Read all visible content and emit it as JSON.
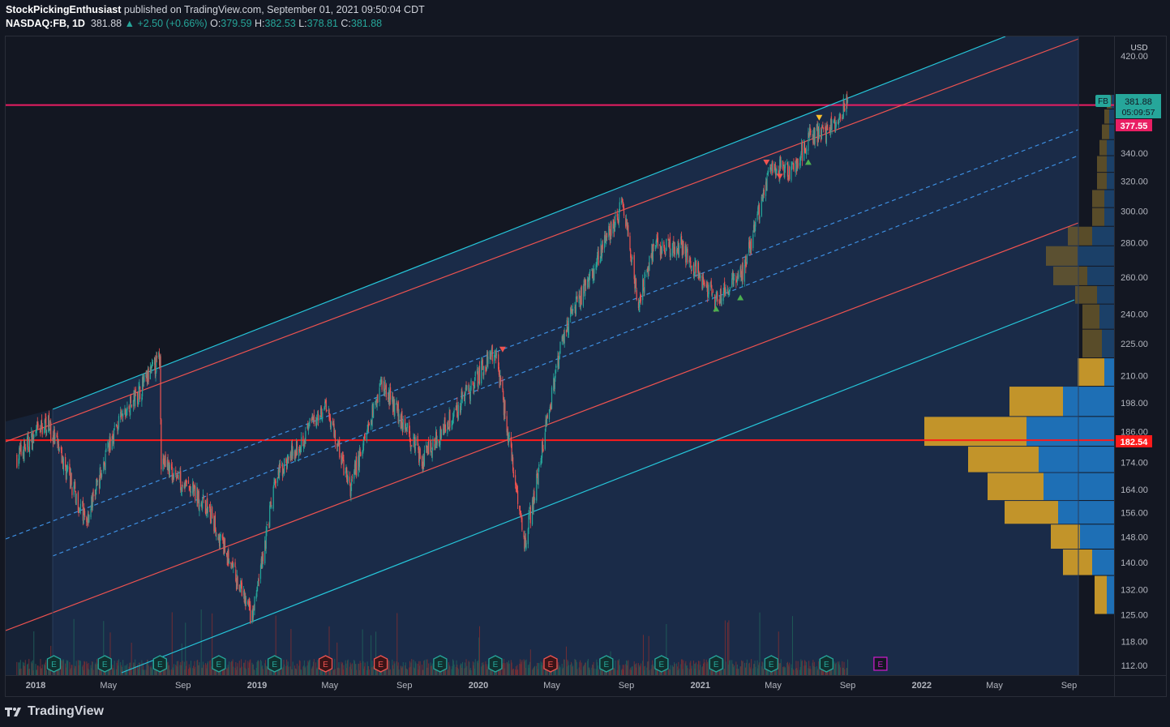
{
  "header": {
    "author": "StockPickingEnthusiast",
    "published": "published on TradingView.com, September 01, 2021 09:50:04 CDT",
    "symbol": "NASDAQ:FB, 1D",
    "last": "381.88",
    "change": "▲ +2.50 (+0.66%)",
    "o_label": "O:",
    "o": "379.59",
    "h_label": "H:",
    "h": "382.53",
    "l_label": "L:",
    "l": "378.81",
    "c_label": "C:",
    "c": "381.88"
  },
  "axis": {
    "currency": "USD",
    "y_ticks": [
      "420.00",
      "340.00",
      "320.00",
      "300.00",
      "280.00",
      "260.00",
      "240.00",
      "225.00",
      "210.00",
      "198.00",
      "186.00",
      "174.00",
      "164.00",
      "156.00",
      "148.00",
      "140.00",
      "132.00",
      "125.00",
      "118.00",
      "112.00"
    ],
    "x_ticks": [
      "2018",
      "May",
      "Sep",
      "2019",
      "May",
      "Sep",
      "2020",
      "May",
      "Sep",
      "2021",
      "May",
      "Sep",
      "2022",
      "May",
      "Sep"
    ]
  },
  "tags": {
    "symbol_tag": "FB",
    "last_price": "381.88",
    "countdown": "05:09:57",
    "resistance": "377.55",
    "support": "182.54"
  },
  "earnings_label": "E",
  "footer": {
    "brand": "TradingView"
  },
  "colors": {
    "up": "#26a69a",
    "down": "#ef5350",
    "cyan": "#26c6da",
    "red_line": "#ef5350",
    "channel_fill": "#1c2f4f",
    "vp_up": "#1e6fb5",
    "vp_down": "#c2942a",
    "resistance": "#e91e63"
  },
  "chart_data": {
    "type": "candlestick",
    "title": "NASDAQ:FB, 1D",
    "ylim": [
      112,
      420
    ],
    "xlim": [
      "2017-12-01",
      "2022-10-15"
    ],
    "y_scale": "log",
    "ohlc_last": {
      "open": 379.59,
      "high": 382.53,
      "low": 378.81,
      "close": 381.88
    },
    "horizontal_lines": [
      {
        "name": "resistance",
        "value": 377.55
      },
      {
        "name": "support",
        "value": 182.54
      }
    ],
    "price_path_keypoints": [
      [
        "2017-12-01",
        176
      ],
      [
        "2018-01-20",
        190
      ],
      [
        "2018-03-25",
        153
      ],
      [
        "2018-05-10",
        186
      ],
      [
        "2018-07-25",
        218
      ],
      [
        "2018-07-27",
        175
      ],
      [
        "2018-10-10",
        158
      ],
      [
        "2018-12-24",
        124
      ],
      [
        "2019-02-01",
        168
      ],
      [
        "2019-04-25",
        198
      ],
      [
        "2019-06-03",
        164
      ],
      [
        "2019-07-25",
        207
      ],
      [
        "2019-10-01",
        175
      ],
      [
        "2020-01-29",
        222
      ],
      [
        "2020-03-18",
        146
      ],
      [
        "2020-05-20",
        230
      ],
      [
        "2020-08-26",
        304
      ],
      [
        "2020-09-21",
        245
      ],
      [
        "2020-10-15",
        277
      ],
      [
        "2020-12-01",
        278
      ],
      [
        "2021-01-27",
        247
      ],
      [
        "2021-03-12",
        264
      ],
      [
        "2021-04-29",
        330
      ],
      [
        "2021-06-01",
        327
      ],
      [
        "2021-06-30",
        353
      ],
      [
        "2021-07-30",
        356
      ],
      [
        "2021-09-01",
        381.88
      ]
    ],
    "volume_profile": [
      {
        "price_low": 125,
        "price_high": 136,
        "buy": 0.25,
        "sell": 0.15
      },
      {
        "price_low": 136,
        "price_high": 144,
        "buy": 0.6,
        "sell": 0.45
      },
      {
        "price_low": 144,
        "price_high": 152,
        "buy": 0.6,
        "sell": 0.7
      },
      {
        "price_low": 152,
        "price_high": 160,
        "buy": 1.1,
        "sell": 1.15
      },
      {
        "price_low": 160,
        "price_high": 170,
        "buy": 1.15,
        "sell": 1.45
      },
      {
        "price_low": 170,
        "price_high": 180,
        "buy": 1.45,
        "sell": 1.55
      },
      {
        "price_low": 180,
        "price_high": 192,
        "buy": 2.1,
        "sell": 1.8
      },
      {
        "price_low": 192,
        "price_high": 205,
        "buy": 1.1,
        "sell": 1.05
      },
      {
        "price_low": 205,
        "price_high": 218,
        "buy": 0.55,
        "sell": 0.2
      },
      {
        "price_low": 218,
        "price_high": 232,
        "buy": 0.4,
        "sell": 0.25
      },
      {
        "price_low": 232,
        "price_high": 245,
        "buy": 0.35,
        "sell": 0.3
      },
      {
        "price_low": 245,
        "price_high": 255,
        "buy": 0.45,
        "sell": 0.35
      },
      {
        "price_low": 255,
        "price_high": 266,
        "buy": 0.7,
        "sell": 0.55
      },
      {
        "price_low": 266,
        "price_high": 278,
        "buy": 0.65,
        "sell": 0.75
      },
      {
        "price_low": 278,
        "price_high": 290,
        "buy": 0.5,
        "sell": 0.45
      },
      {
        "price_low": 290,
        "price_high": 302,
        "buy": 0.25,
        "sell": 0.2
      },
      {
        "price_low": 302,
        "price_high": 314,
        "buy": 0.25,
        "sell": 0.2
      },
      {
        "price_low": 314,
        "price_high": 326,
        "buy": 0.2,
        "sell": 0.15
      },
      {
        "price_low": 326,
        "price_high": 338,
        "buy": 0.2,
        "sell": 0.15
      },
      {
        "price_low": 338,
        "price_high": 350,
        "buy": 0.15,
        "sell": 0.15
      },
      {
        "price_low": 350,
        "price_high": 362,
        "buy": 0.15,
        "sell": 0.1
      },
      {
        "price_low": 362,
        "price_high": 374,
        "buy": 0.1,
        "sell": 0.1
      },
      {
        "price_low": 374,
        "price_high": 386,
        "buy": 0.1,
        "sell": 0.05
      }
    ],
    "earnings_dates": [
      {
        "date": "2018-01-31",
        "beat": true
      },
      {
        "date": "2018-04-25",
        "beat": true
      },
      {
        "date": "2018-07-25",
        "beat": true
      },
      {
        "date": "2018-10-30",
        "beat": true
      },
      {
        "date": "2019-01-30",
        "beat": true
      },
      {
        "date": "2019-04-24",
        "beat": false
      },
      {
        "date": "2019-07-24",
        "beat": false
      },
      {
        "date": "2019-10-30",
        "beat": true
      },
      {
        "date": "2020-01-29",
        "beat": true
      },
      {
        "date": "2020-04-29",
        "beat": false
      },
      {
        "date": "2020-07-30",
        "beat": true
      },
      {
        "date": "2020-10-29",
        "beat": true
      },
      {
        "date": "2021-01-27",
        "beat": true
      },
      {
        "date": "2021-04-28",
        "beat": true
      },
      {
        "date": "2021-07-28",
        "beat": true
      },
      {
        "date": "2021-10-25",
        "upcoming": true
      }
    ]
  }
}
